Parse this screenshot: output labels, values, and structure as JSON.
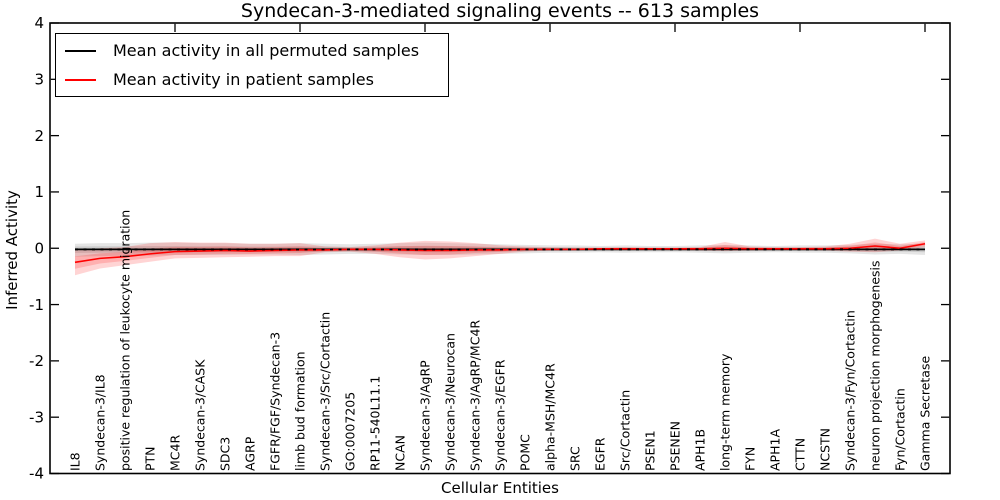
{
  "chart_data": {
    "type": "line",
    "title": "Syndecan-3-mediated signaling events -- 613 samples",
    "xlabel": "Cellular Entities",
    "ylabel": "Inferred Activity",
    "ylim": [
      -4,
      4
    ],
    "xlim": [
      0,
      36
    ],
    "yticks": [
      -4,
      -3,
      -2,
      -1,
      0,
      1,
      2,
      3,
      4
    ],
    "ytick_labels": [
      "-4",
      "-3",
      "-2",
      "-1",
      "0",
      "1",
      "2",
      "3",
      "4"
    ],
    "xticks_numeric": [
      5,
      10,
      15,
      20,
      25,
      30,
      35
    ],
    "grid": false,
    "legend_position": "upper left",
    "categories": [
      "IL8",
      "Syndecan-3/IL8",
      "positive regulation of leukocyte migration",
      "PTN",
      "MC4R",
      "Syndecan-3/CASK",
      "SDC3",
      "AGRP",
      "FGFR/FGF/Syndecan-3",
      "limb bud formation",
      "Syndecan-3/Src/Cortactin",
      "GO:0007205",
      "RP11-540L11.1",
      "NCAN",
      "Syndecan-3/AgRP",
      "Syndecan-3/Neurocan",
      "Syndecan-3/AgRP/MC4R",
      "Syndecan-3/EGFR",
      "POMC",
      "alpha-MSH/MC4R",
      "SRC",
      "EGFR",
      "Src/Cortactin",
      "PSEN1",
      "PSENEN",
      "APH1B",
      "long-term memory",
      "FYN",
      "APH1A",
      "CTTN",
      "NCSTN",
      "Syndecan-3/Fyn/Cortactin",
      "neuron projection morphogenesis",
      "Fyn/Cortactin",
      "Gamma Secretase"
    ],
    "series": [
      {
        "name": "Mean activity in all permuted samples",
        "color": "#000000",
        "band_color": "rgba(0,0,0,0.10)",
        "values": [
          -0.02,
          -0.02,
          -0.02,
          -0.02,
          -0.02,
          -0.02,
          -0.02,
          -0.02,
          -0.02,
          -0.02,
          -0.02,
          -0.02,
          -0.02,
          -0.02,
          -0.02,
          -0.02,
          -0.02,
          -0.02,
          -0.02,
          -0.02,
          -0.02,
          -0.02,
          -0.02,
          -0.02,
          -0.02,
          -0.02,
          -0.02,
          -0.02,
          -0.02,
          -0.02,
          -0.02,
          -0.02,
          -0.02,
          -0.02,
          -0.02
        ],
        "band_lo": [
          -0.15,
          -0.14,
          -0.13,
          -0.13,
          -0.12,
          -0.12,
          -0.12,
          -0.11,
          -0.11,
          -0.12,
          -0.11,
          -0.1,
          -0.1,
          -0.11,
          -0.12,
          -0.12,
          -0.11,
          -0.1,
          -0.09,
          -0.08,
          -0.08,
          -0.07,
          -0.08,
          -0.07,
          -0.07,
          -0.08,
          -0.09,
          -0.08,
          -0.07,
          -0.08,
          -0.08,
          -0.09,
          -0.11,
          -0.1,
          -0.12
        ],
        "band_hi": [
          0.08,
          0.09,
          0.09,
          0.1,
          0.1,
          0.09,
          0.09,
          0.08,
          0.08,
          0.09,
          0.08,
          0.07,
          0.08,
          0.09,
          0.1,
          0.09,
          0.08,
          0.07,
          0.06,
          0.05,
          0.05,
          0.04,
          0.05,
          0.04,
          0.04,
          0.05,
          0.06,
          0.05,
          0.04,
          0.05,
          0.05,
          0.06,
          0.08,
          0.07,
          0.08
        ]
      },
      {
        "name": "Mean activity in patient samples",
        "color": "#ff0000",
        "band_color": "rgba(255,0,0,0.17)",
        "values": [
          -0.25,
          -0.18,
          -0.15,
          -0.1,
          -0.06,
          -0.05,
          -0.04,
          -0.05,
          -0.04,
          -0.03,
          -0.03,
          -0.02,
          -0.02,
          -0.03,
          -0.04,
          -0.04,
          -0.03,
          -0.03,
          -0.02,
          -0.02,
          -0.02,
          -0.01,
          -0.01,
          -0.01,
          -0.01,
          -0.01,
          0.0,
          -0.01,
          -0.01,
          -0.01,
          -0.01,
          0.0,
          0.04,
          0.0,
          0.08
        ],
        "band_lo": [
          -0.48,
          -0.36,
          -0.3,
          -0.24,
          -0.18,
          -0.17,
          -0.16,
          -0.15,
          -0.14,
          -0.14,
          -0.07,
          -0.06,
          -0.1,
          -0.16,
          -0.2,
          -0.18,
          -0.14,
          -0.1,
          -0.06,
          -0.04,
          -0.04,
          -0.03,
          -0.03,
          -0.03,
          -0.03,
          -0.04,
          -0.05,
          -0.04,
          -0.03,
          -0.03,
          -0.04,
          -0.06,
          -0.07,
          -0.04,
          0.02
        ],
        "band_hi": [
          -0.04,
          0.0,
          0.02,
          0.09,
          0.11,
          0.1,
          0.1,
          0.08,
          0.08,
          0.09,
          0.03,
          0.02,
          0.05,
          0.1,
          0.13,
          0.12,
          0.09,
          0.05,
          0.03,
          0.02,
          0.01,
          0.01,
          0.02,
          0.01,
          0.01,
          0.02,
          0.11,
          0.03,
          0.02,
          0.02,
          0.03,
          0.08,
          0.17,
          0.08,
          0.14
        ]
      }
    ],
    "overlay_line": {
      "y": -0.02,
      "style": "dotted",
      "color": "#000000"
    }
  }
}
